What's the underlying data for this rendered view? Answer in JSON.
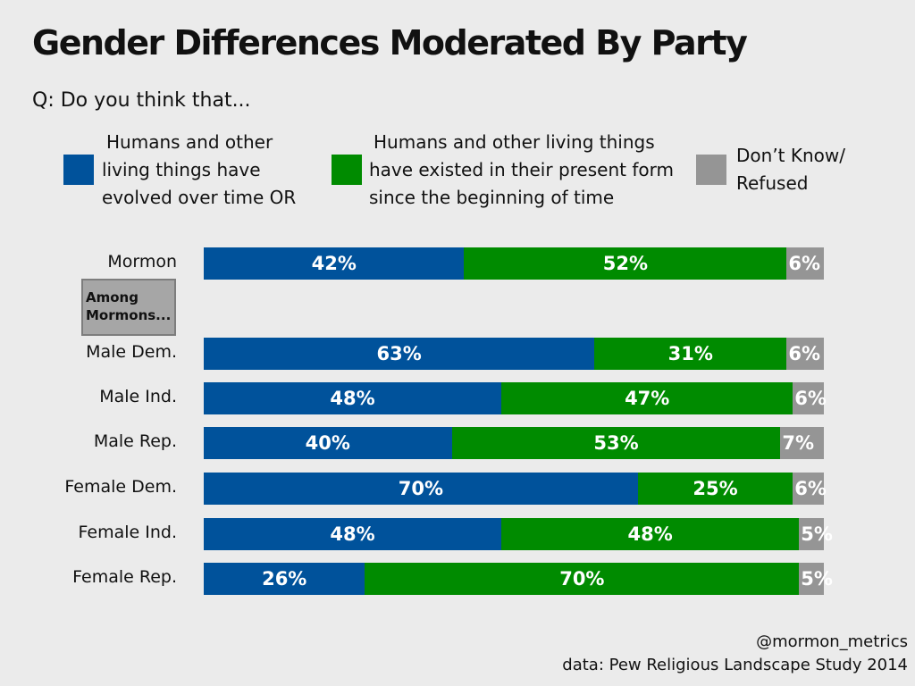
{
  "chart_data": {
    "type": "bar",
    "orientation": "horizontal-stacked",
    "title": "Gender Differences Moderated By Party",
    "subtitle": "Q: Do you think that...",
    "categories": [
      "Mormon",
      "Male Dem.",
      "Male Ind.",
      "Male Rep.",
      "Female Dem.",
      "Female Ind.",
      "Female Rep."
    ],
    "group_note": "Among Mormons...",
    "series": [
      {
        "name": "Humans and other living things have evolved over time OR",
        "color": "#00529b",
        "values": [
          42,
          63,
          48,
          40,
          70,
          48,
          26
        ]
      },
      {
        "name": "Humans and other living things have existed in their present form since the beginning of time",
        "color": "#008b00",
        "values": [
          52,
          31,
          47,
          53,
          25,
          48,
          70
        ]
      },
      {
        "name": "Don't Know/ Refused",
        "color": "#959595",
        "values": [
          6,
          6,
          6,
          7,
          6,
          5,
          5
        ]
      }
    ],
    "legend_lines": [
      [
        "Humans and other",
        "living things have",
        "evolved over time OR"
      ],
      [
        "Humans and other living things",
        "have existed in their present form",
        "since the beginning of time"
      ],
      [
        "Don’t Know/",
        "Refused"
      ]
    ],
    "xlim": [
      0,
      100
    ],
    "unit": "%",
    "legend": "top"
  },
  "footer": {
    "handle": "@mormon_metrics",
    "source": "data: Pew Religious Landscape Study 2014"
  }
}
